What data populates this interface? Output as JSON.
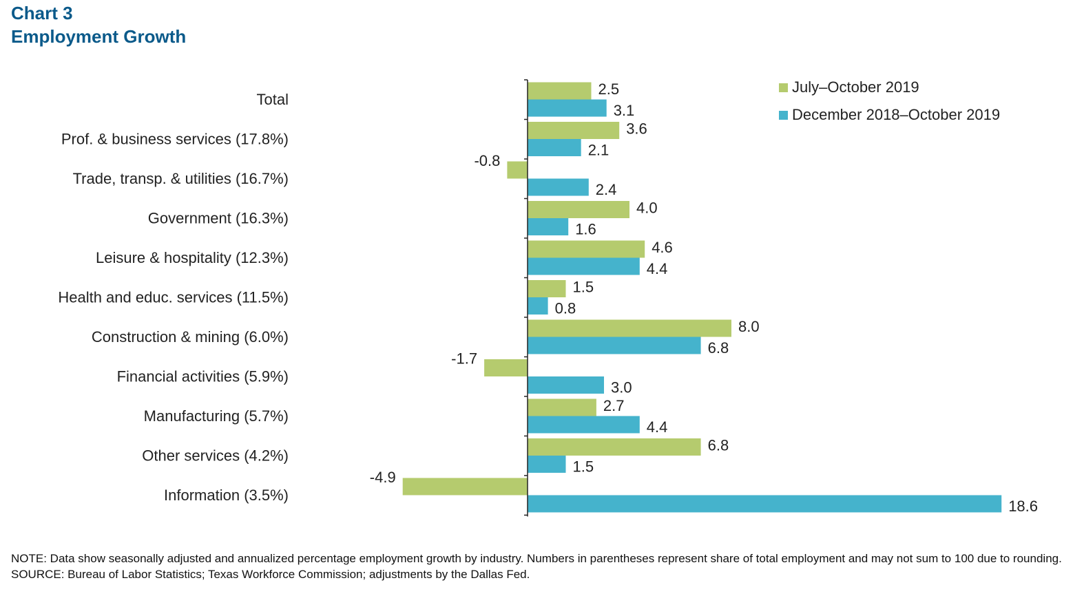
{
  "header": {
    "chart_number": "Chart 3",
    "title": "Employment Growth"
  },
  "chart_data": {
    "type": "bar",
    "orientation": "horizontal",
    "categories": [
      "Total",
      "Prof. & business services (17.8%)",
      "Trade, transp. & utilities (16.7%)",
      "Government (16.3%)",
      "Leisure & hospitality (12.3%)",
      "Health and educ. services (11.5%)",
      "Construction & mining (6.0%)",
      "Financial activities (5.9%)",
      "Manufacturing (5.7%)",
      "Other services (4.2%)",
      "Information (3.5%)"
    ],
    "series": [
      {
        "name": "July–October 2019",
        "color": "#b5cb6e",
        "values": [
          2.5,
          3.6,
          -0.8,
          4.0,
          4.6,
          1.5,
          8.0,
          -1.7,
          2.7,
          6.8,
          -4.9
        ],
        "labels": [
          "2.5",
          "3.6",
          "-0.8",
          "4.0",
          "4.6",
          "1.5",
          "8.0",
          "-1.7",
          "2.7",
          "6.8",
          "-4.9"
        ]
      },
      {
        "name": "December 2018–October 2019",
        "color": "#45b3cc",
        "values": [
          3.1,
          2.1,
          2.4,
          1.6,
          4.4,
          0.8,
          6.8,
          3.0,
          4.4,
          1.5,
          18.6
        ],
        "labels": [
          "3.1",
          "2.1",
          "2.4",
          "1.6",
          "4.4",
          "0.8",
          "6.8",
          "3.0",
          "4.4",
          "1.5",
          "18.6"
        ]
      }
    ],
    "xlim": [
      -5,
      18.6
    ],
    "grid": false,
    "legend_position": "top-right"
  },
  "footer": {
    "note": "NOTE: Data show seasonally adjusted and annualized percentage employment growth by industry. Numbers in parentheses represent share of total employment and may not sum to 100 due to rounding.",
    "source": "SOURCE: Bureau of Labor Statistics; Texas Workforce Commission; adjustments by the Dallas Fed."
  }
}
